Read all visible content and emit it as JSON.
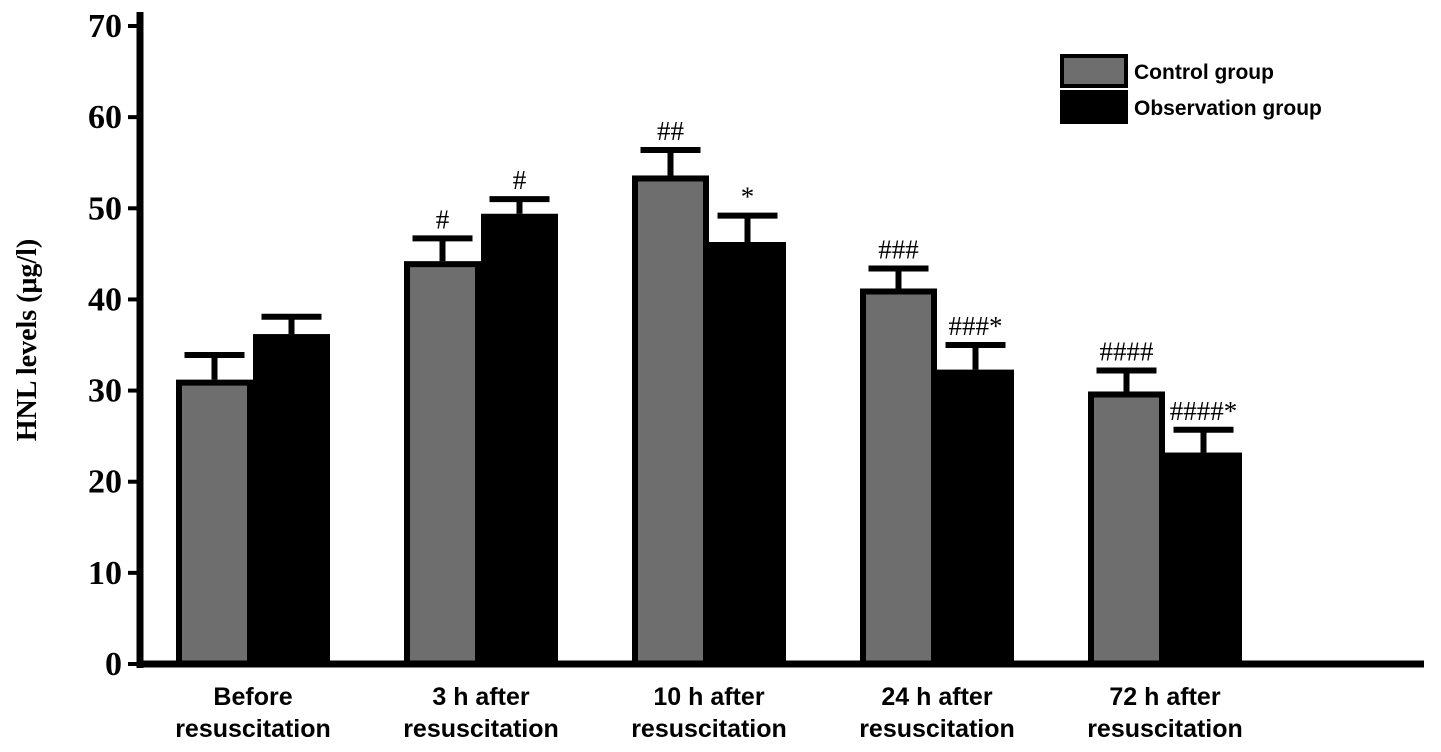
{
  "chart_data": {
    "type": "bar",
    "title": "",
    "xlabel": "",
    "ylabel": "HNL levels (μg/l)",
    "ylim": [
      0,
      70
    ],
    "yticks": [
      0,
      10,
      20,
      30,
      40,
      50,
      60,
      70
    ],
    "grid": false,
    "legend_position": "top-right",
    "categories": [
      [
        "Before",
        "resuscitation"
      ],
      [
        "3 h after",
        "resuscitation"
      ],
      [
        "10 h after",
        "resuscitation"
      ],
      [
        "24 h after",
        "resuscitation"
      ],
      [
        "72 h after",
        "resuscitation"
      ]
    ],
    "series": [
      {
        "name": "Control group",
        "color": "#6e6e6e",
        "values": [
          31.2,
          44.2,
          53.6,
          41.2,
          29.9
        ],
        "errors": [
          2.7,
          2.5,
          2.8,
          2.2,
          2.3
        ],
        "annotations": [
          "",
          "#",
          "##",
          "###",
          "####"
        ]
      },
      {
        "name": "Observation group",
        "color": "#000000",
        "values": [
          36.2,
          49.4,
          46.3,
          32.3,
          23.2
        ],
        "errors": [
          1.9,
          1.6,
          2.9,
          2.7,
          2.5
        ],
        "annotations": [
          "",
          "#",
          "*",
          "###*",
          "####*"
        ]
      }
    ]
  }
}
